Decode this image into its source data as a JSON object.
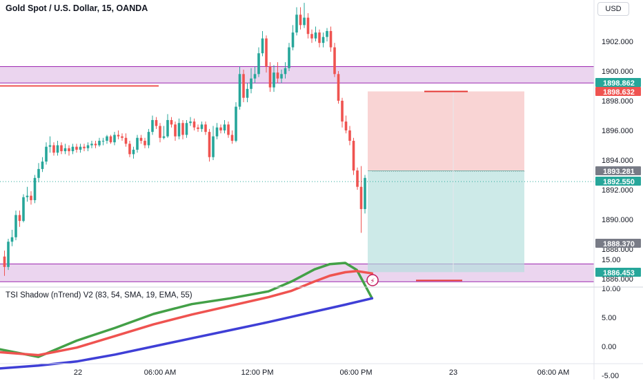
{
  "header": {
    "title": "Gold Spot / U.S. Dollar, 15, OANDA",
    "currency": "USD"
  },
  "indicator": {
    "title": "TSI Shadow (nTrend) V2 (83, 54, SMA, 19, EMA, 55)"
  },
  "colors": {
    "up": "#26a69a",
    "down": "#ef5350",
    "zone": "#e1bee7",
    "zone_border": "#9c27b0",
    "stop": "#f7c5c5",
    "target": "#b2dfdb",
    "tsi_green": "#43a047",
    "tsi_red": "#ef5350",
    "tsi_blue": "#3f3fd6"
  },
  "chart_data": [
    {
      "type": "candlestick",
      "title": "Gold Spot / U.S. Dollar, 15, OANDA",
      "x_ticks": [
        "22",
        "06:00 AM",
        "12:00 PM",
        "06:00 PM",
        "23",
        "06:00 AM"
      ],
      "y_ticks": [
        "1886.000",
        "1888.000",
        "1890.000",
        "1892.000",
        "1894.000",
        "1896.000",
        "1898.000",
        "1900.000",
        "1902.000"
      ],
      "ylim": [
        1885.6,
        1904.6
      ],
      "price_labels": [
        {
          "value": "1898.862",
          "color": "#26a69a"
        },
        {
          "value": "1898.632",
          "color": "#ef5350"
        },
        {
          "value": "1893.281",
          "color": "#787b86"
        },
        {
          "value": "1892.550",
          "color": "#26a69a"
        },
        {
          "value": "1888.370",
          "color": "#787b86"
        },
        {
          "value": "1886.453",
          "color": "#26a69a"
        }
      ],
      "zones": [
        [
          1899.2,
          1900.3
        ],
        [
          1885.8,
          1887.0
        ]
      ],
      "levels": {
        "red_line_left": 1899.0,
        "position_entry": 1893.28,
        "position_stop": 1898.63,
        "position_target": 1886.45
      },
      "candles": [
        [
          1887.5,
          1886.8,
          1887.9,
          1886.2
        ],
        [
          1886.8,
          1888.5,
          1888.7,
          1886.6
        ],
        [
          1888.5,
          1888.8,
          1889.3,
          1888.2
        ],
        [
          1888.8,
          1890.3,
          1890.6,
          1888.6
        ],
        [
          1890.3,
          1889.9,
          1890.6,
          1889.5
        ],
        [
          1889.9,
          1891.5,
          1891.7,
          1889.8
        ],
        [
          1891.5,
          1891.6,
          1892.2,
          1891.2
        ],
        [
          1891.6,
          1891.3,
          1891.9,
          1891.0
        ],
        [
          1891.3,
          1892.8,
          1893.0,
          1891.1
        ],
        [
          1892.8,
          1893.4,
          1893.8,
          1892.5
        ],
        [
          1893.4,
          1893.9,
          1894.2,
          1893.2
        ],
        [
          1893.9,
          1894.9,
          1895.2,
          1893.7
        ],
        [
          1894.9,
          1895.0,
          1895.6,
          1894.5
        ],
        [
          1895.0,
          1894.5,
          1895.2,
          1894.3
        ],
        [
          1894.5,
          1895.0,
          1895.3,
          1894.3
        ],
        [
          1895.0,
          1894.6,
          1895.2,
          1894.4
        ],
        [
          1894.6,
          1894.8,
          1895.1,
          1894.4
        ],
        [
          1894.8,
          1894.6,
          1895.0,
          1894.3
        ],
        [
          1894.6,
          1894.9,
          1895.1,
          1894.4
        ],
        [
          1894.9,
          1894.7,
          1895.1,
          1894.5
        ],
        [
          1894.7,
          1894.9,
          1895.1,
          1894.5
        ],
        [
          1894.9,
          1894.8,
          1895.1,
          1894.6
        ],
        [
          1894.8,
          1895.0,
          1895.2,
          1894.6
        ],
        [
          1895.0,
          1895.1,
          1895.3,
          1894.8
        ],
        [
          1895.1,
          1895.0,
          1895.3,
          1894.8
        ],
        [
          1895.0,
          1895.3,
          1895.5,
          1894.9
        ],
        [
          1895.3,
          1895.3,
          1895.5,
          1895.0
        ],
        [
          1895.3,
          1895.6,
          1895.7,
          1895.1
        ],
        [
          1895.6,
          1895.2,
          1895.7,
          1895.1
        ],
        [
          1895.2,
          1895.7,
          1895.9,
          1895.0
        ],
        [
          1895.7,
          1895.6,
          1896.0,
          1895.4
        ],
        [
          1895.6,
          1895.5,
          1895.8,
          1895.3
        ],
        [
          1895.5,
          1895.1,
          1895.8,
          1894.9
        ],
        [
          1895.1,
          1894.4,
          1895.3,
          1894.2
        ],
        [
          1894.4,
          1894.7,
          1894.9,
          1894.1
        ],
        [
          1894.7,
          1895.5,
          1895.7,
          1894.5
        ],
        [
          1895.5,
          1895.3,
          1895.7,
          1895.1
        ],
        [
          1895.3,
          1895.0,
          1895.5,
          1894.8
        ],
        [
          1895.0,
          1895.9,
          1896.1,
          1894.8
        ],
        [
          1895.9,
          1896.7,
          1897.0,
          1895.7
        ],
        [
          1896.7,
          1896.3,
          1896.9,
          1896.1
        ],
        [
          1896.3,
          1895.5,
          1896.5,
          1895.2
        ],
        [
          1895.5,
          1895.6,
          1896.3,
          1895.4
        ],
        [
          1895.6,
          1896.7,
          1897.1,
          1895.5
        ],
        [
          1896.7,
          1896.4,
          1896.9,
          1896.2
        ],
        [
          1896.4,
          1895.6,
          1896.6,
          1895.3
        ],
        [
          1895.6,
          1896.5,
          1896.8,
          1895.4
        ],
        [
          1896.5,
          1895.7,
          1896.7,
          1895.4
        ],
        [
          1895.7,
          1896.5,
          1896.7,
          1895.5
        ],
        [
          1896.5,
          1896.6,
          1896.9,
          1896.3
        ],
        [
          1896.6,
          1896.2,
          1896.8,
          1896.0
        ],
        [
          1896.2,
          1896.1,
          1896.4,
          1895.9
        ],
        [
          1896.1,
          1896.4,
          1896.6,
          1895.9
        ],
        [
          1896.4,
          1895.9,
          1896.6,
          1895.7
        ],
        [
          1895.9,
          1894.2,
          1896.1,
          1893.9
        ],
        [
          1894.2,
          1895.6,
          1896.3,
          1894.0
        ],
        [
          1895.6,
          1896.2,
          1896.5,
          1895.4
        ],
        [
          1896.2,
          1896.0,
          1896.4,
          1895.8
        ],
        [
          1896.0,
          1896.4,
          1896.7,
          1895.8
        ],
        [
          1896.4,
          1895.7,
          1896.6,
          1895.5
        ],
        [
          1895.7,
          1895.3,
          1896.0,
          1895.1
        ],
        [
          1895.3,
          1897.6,
          1897.9,
          1895.2
        ],
        [
          1897.6,
          1899.8,
          1900.3,
          1897.4
        ],
        [
          1899.8,
          1898.2,
          1900.1,
          1897.9
        ],
        [
          1898.2,
          1898.8,
          1899.2,
          1897.9
        ],
        [
          1898.8,
          1899.5,
          1900.2,
          1898.5
        ],
        [
          1899.5,
          1899.8,
          1900.3,
          1899.2
        ],
        [
          1899.8,
          1901.2,
          1901.6,
          1899.6
        ],
        [
          1901.2,
          1902.2,
          1902.7,
          1901.0
        ],
        [
          1902.2,
          1900.3,
          1902.4,
          1899.9
        ],
        [
          1900.3,
          1898.9,
          1900.6,
          1898.6
        ],
        [
          1898.9,
          1899.9,
          1900.4,
          1898.6
        ],
        [
          1899.9,
          1899.5,
          1900.6,
          1899.2
        ],
        [
          1899.5,
          1899.8,
          1900.1,
          1899.2
        ],
        [
          1899.8,
          1900.2,
          1900.6,
          1899.5
        ],
        [
          1900.2,
          1901.6,
          1901.9,
          1900.0
        ],
        [
          1901.6,
          1902.6,
          1903.1,
          1901.4
        ],
        [
          1902.6,
          1903.8,
          1904.3,
          1902.4
        ],
        [
          1903.8,
          1903.1,
          1904.3,
          1902.8
        ],
        [
          1903.1,
          1903.6,
          1904.6,
          1902.9
        ],
        [
          1903.6,
          1902.5,
          1903.9,
          1902.2
        ],
        [
          1902.5,
          1902.2,
          1902.8,
          1901.9
        ],
        [
          1902.2,
          1902.6,
          1903.0,
          1902.0
        ],
        [
          1902.6,
          1901.9,
          1902.8,
          1901.6
        ],
        [
          1901.9,
          1902.3,
          1902.6,
          1901.6
        ],
        [
          1902.3,
          1902.7,
          1902.9,
          1902.0
        ],
        [
          1902.7,
          1901.6,
          1903.0,
          1901.3
        ],
        [
          1901.6,
          1899.8,
          1901.9,
          1899.6
        ],
        [
          1899.8,
          1898.0,
          1900.0,
          1897.8
        ],
        [
          1898.0,
          1896.6,
          1898.2,
          1896.2
        ],
        [
          1896.6,
          1896.0,
          1897.0,
          1895.8
        ],
        [
          1896.0,
          1895.3,
          1896.3,
          1895.0
        ],
        [
          1895.3,
          1893.3,
          1895.5,
          1893.0
        ],
        [
          1893.3,
          1892.2,
          1893.5,
          1892.0
        ],
        [
          1892.2,
          1890.7,
          1893.6,
          1889.1
        ],
        [
          1890.7,
          1892.8,
          1893.0,
          1890.4
        ]
      ]
    },
    {
      "type": "line",
      "title": "TSI Shadow (nTrend) V2 (83, 54, SMA, 19, EMA, 55)",
      "y_ticks": [
        "-5.00",
        "0.00",
        "5.00",
        "10.00",
        "15.00"
      ],
      "ylim": [
        -5.5,
        16
      ],
      "series": [
        {
          "color": "#43a047",
          "x": [
            0,
            10,
            20,
            30,
            40,
            50,
            60,
            70,
            76,
            82,
            86,
            90,
            93,
            97
          ],
          "values": [
            -0.5,
            -1.8,
            1.0,
            3.2,
            5.6,
            7.3,
            8.3,
            9.5,
            11.2,
            13.3,
            14.2,
            14.4,
            13.2,
            8.3
          ]
        },
        {
          "color": "#ef5350",
          "x": [
            0,
            10,
            20,
            30,
            40,
            50,
            60,
            70,
            76,
            82,
            86,
            90,
            93,
            97
          ],
          "values": [
            -1.0,
            -1.5,
            -0.2,
            1.8,
            3.8,
            5.5,
            7.0,
            8.5,
            9.6,
            11.2,
            12.2,
            12.8,
            13.0,
            12.6
          ]
        },
        {
          "color": "#3f3fd6",
          "x": [
            0,
            10,
            20,
            30,
            40,
            50,
            60,
            70,
            80,
            90,
            97
          ],
          "values": [
            -3.8,
            -3.3,
            -2.6,
            -1.4,
            0.0,
            1.4,
            2.8,
            4.2,
            5.7,
            7.2,
            8.3
          ]
        }
      ]
    }
  ]
}
